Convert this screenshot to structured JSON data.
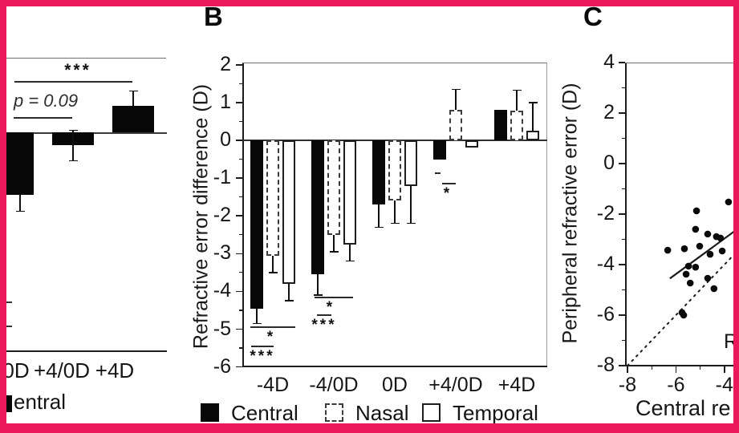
{
  "figure": {
    "border_color": "#e9195c",
    "background": "#ffffff"
  },
  "panels": {
    "a": {
      "note": "left panel cropped by image edge",
      "x_tick_labels": [
        "0D",
        "+4/0D",
        "+4D"
      ],
      "legend_fragment": "entral",
      "sig_stars": "***",
      "p_label": "p = 0.09"
    },
    "b": {
      "panel_letter": "B",
      "ylabel": "Refractive error difference (D)",
      "y_ticks": [
        2,
        1,
        0,
        -1,
        -2,
        -3,
        -4,
        -5,
        -6
      ],
      "x_tick_labels": [
        "-4D",
        "-4/0D",
        "0D",
        "+4/0D",
        "+4D"
      ],
      "legend": [
        "Central",
        "Nasal",
        "Temporal"
      ]
    },
    "c": {
      "panel_letter": "C",
      "ylabel": "Peripheral refractive error (D)",
      "xlabel_fragment": "Central re",
      "r_fragment": "R",
      "y_ticks": [
        4,
        2,
        0,
        -2,
        -4,
        -6,
        -8
      ],
      "x_ticks": [
        -8,
        -6,
        -4
      ]
    }
  },
  "chart_data": [
    {
      "type": "bar",
      "panel": "A",
      "note": "partially cropped at left edge; y-axis off-screen, scale matches panel B",
      "categories": [
        "0D",
        "+4/0D",
        "+4D"
      ],
      "series": [
        {
          "name": "Central",
          "values": [
            -1.65,
            -0.35,
            0.7
          ],
          "errors": [
            0.45,
            0.4,
            0.4
          ]
        }
      ],
      "annotations": [
        {
          "text": "***",
          "between": [
            "0D",
            "+4D"
          ]
        },
        {
          "text": "p = 0.09",
          "between": [
            "0D",
            "+4/0D"
          ]
        }
      ]
    },
    {
      "type": "bar",
      "panel": "B",
      "ylabel": "Refractive error difference (D)",
      "ylim": [
        -6,
        2
      ],
      "categories": [
        "-4D",
        "-4/0D",
        "0D",
        "+4/0D",
        "+4D"
      ],
      "series": [
        {
          "name": "Central",
          "values": [
            -4.45,
            -3.55,
            -1.7,
            -0.5,
            0.8
          ],
          "errors": [
            0.4,
            0.55,
            0.6,
            0,
            0
          ]
        },
        {
          "name": "Nasal",
          "values": [
            -3.05,
            -2.5,
            -1.6,
            0.8,
            0.78
          ],
          "errors": [
            0.45,
            0.45,
            0.6,
            0.55,
            0.55
          ]
        },
        {
          "name": "Temporal",
          "values": [
            -3.8,
            -2.75,
            -1.2,
            -0.2,
            0.25
          ],
          "errors": [
            0.45,
            0.45,
            1.0,
            0,
            0.75
          ]
        }
      ],
      "legend_position": "bottom",
      "significance": [
        {
          "category": "-4D",
          "marks": [
            "*",
            "***"
          ]
        },
        {
          "category": "-4/0D",
          "marks": [
            "*",
            "***"
          ]
        },
        {
          "category": "+4/0D",
          "marks": [
            "*"
          ]
        }
      ]
    },
    {
      "type": "scatter",
      "panel": "C",
      "xlabel_visible": "Central re",
      "ylabel": "Peripheral refractive error (D)",
      "xlim": [
        -8,
        -3.4
      ],
      "ylim": [
        -8,
        4
      ],
      "points": [
        [
          -5.15,
          -1.87
        ],
        [
          -3.83,
          -1.52
        ],
        [
          -5.19,
          -2.6
        ],
        [
          -4.69,
          -2.79
        ],
        [
          -4.33,
          -2.89
        ],
        [
          -4.16,
          -2.95
        ],
        [
          -6.34,
          -3.43
        ],
        [
          -5.65,
          -3.37
        ],
        [
          -5.02,
          -3.27
        ],
        [
          -4.59,
          -3.59
        ],
        [
          -4.09,
          -3.46
        ],
        [
          -5.48,
          -4.06
        ],
        [
          -5.19,
          -4.1
        ],
        [
          -5.58,
          -4.38
        ],
        [
          -5.41,
          -4.73
        ],
        [
          -4.69,
          -4.54
        ],
        [
          -4.43,
          -4.95
        ],
        [
          -5.75,
          -5.9
        ],
        [
          -5.68,
          -6.0
        ]
      ],
      "regression_line": {
        "x1": -6.25,
        "y1": -4.55,
        "x2": -3.5,
        "y2": -2.62,
        "style": "solid"
      },
      "identity_line": {
        "x1": -8,
        "y1": -8,
        "x2": -3.55,
        "y2": -3.55,
        "style": "dotted"
      },
      "annotation_fragment": "R"
    }
  ]
}
